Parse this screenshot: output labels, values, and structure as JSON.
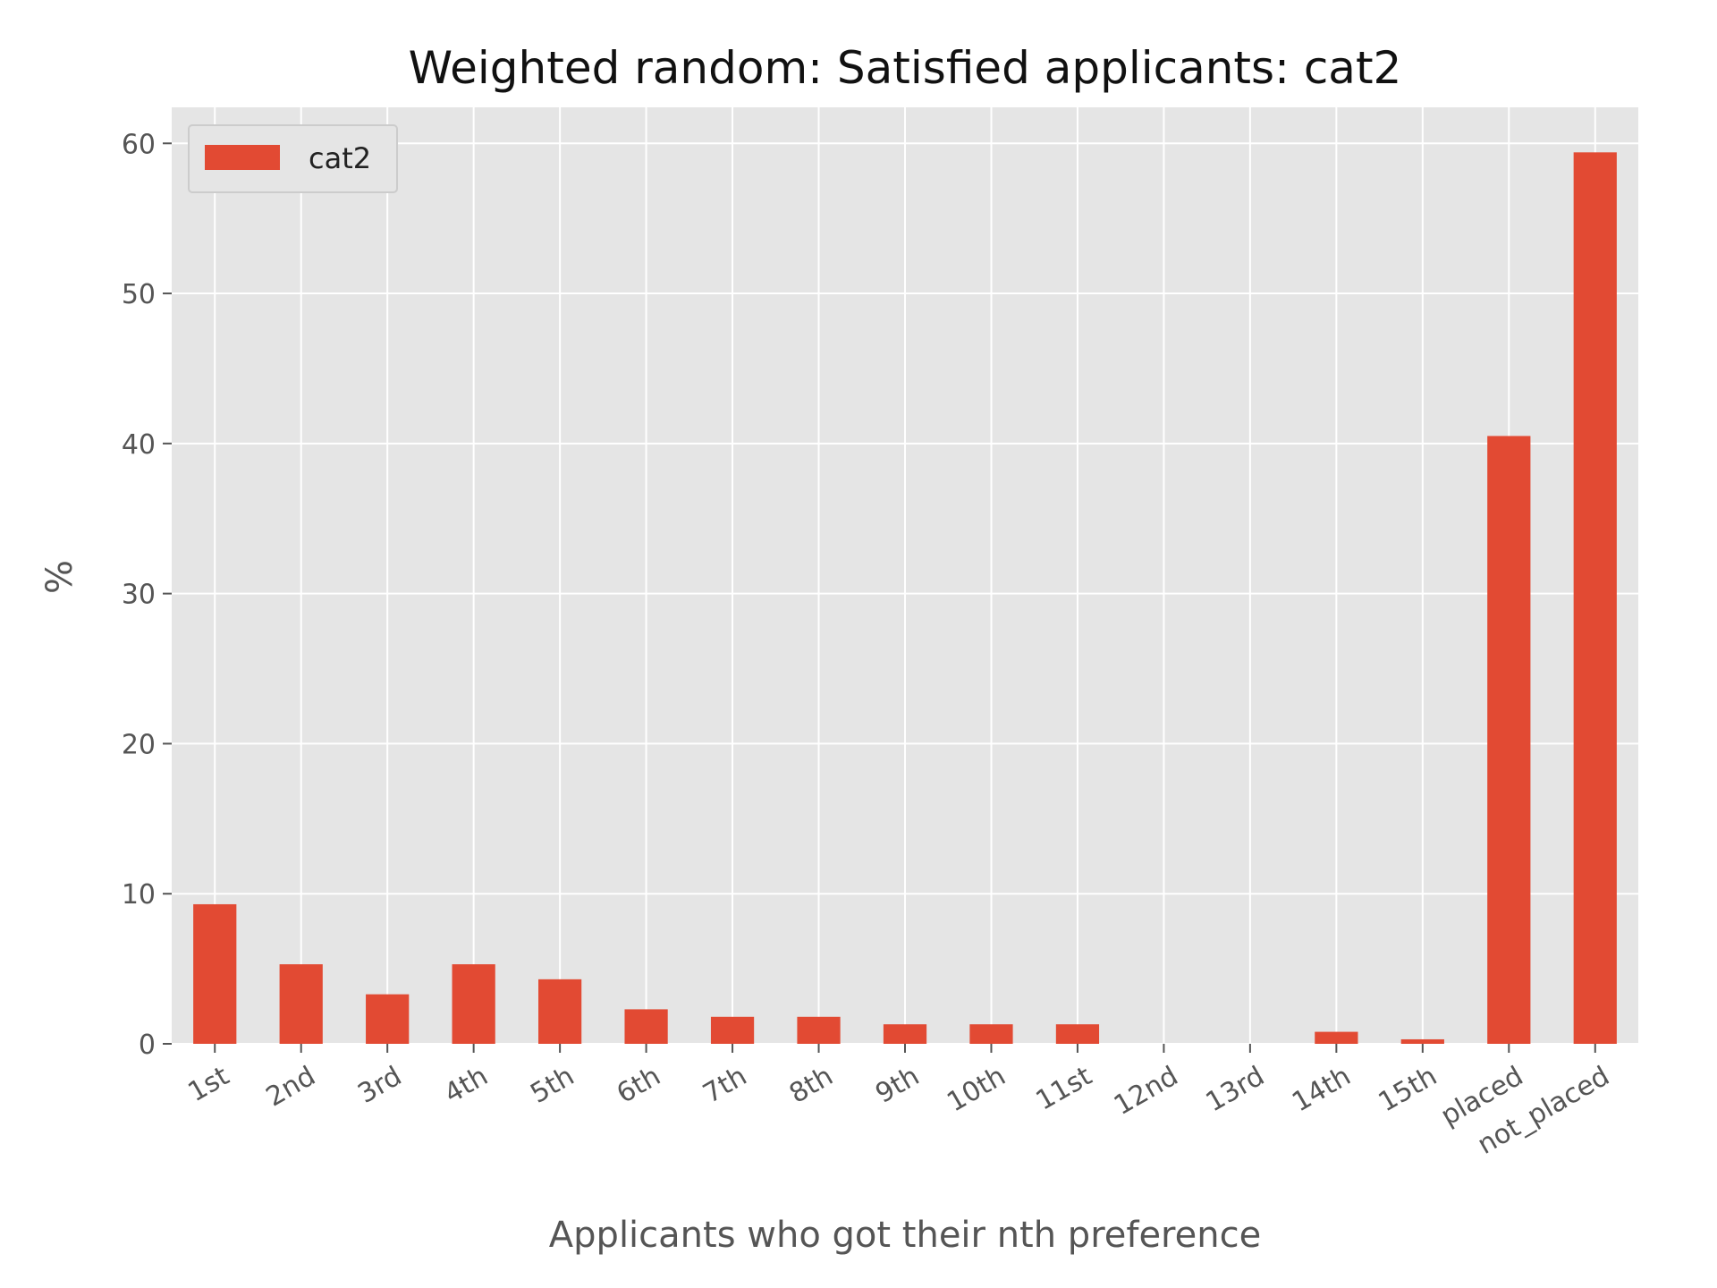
{
  "chart_data": {
    "type": "bar",
    "title": "Weighted random: Satisfied applicants: cat2",
    "xlabel": "Applicants who got their nth preference",
    "ylabel": "%",
    "categories": [
      "1st",
      "2nd",
      "3rd",
      "4th",
      "5th",
      "6th",
      "7th",
      "8th",
      "9th",
      "10th",
      "11st",
      "12nd",
      "13rd",
      "14th",
      "15th",
      "placed",
      "not_placed"
    ],
    "series": [
      {
        "name": "cat2",
        "values": [
          9.3,
          5.3,
          3.3,
          5.3,
          4.3,
          2.3,
          1.8,
          1.8,
          1.3,
          1.3,
          1.3,
          0.0,
          0.0,
          0.8,
          0.3,
          40.5,
          59.4
        ],
        "color": "#e24a33"
      }
    ],
    "ylim": [
      0,
      62.4
    ],
    "yticks": [
      0,
      10,
      20,
      30,
      40,
      50,
      60
    ],
    "grid": true,
    "legend_position": "top-left",
    "background_color": "#e5e5e5",
    "grid_color": "#ffffff"
  }
}
